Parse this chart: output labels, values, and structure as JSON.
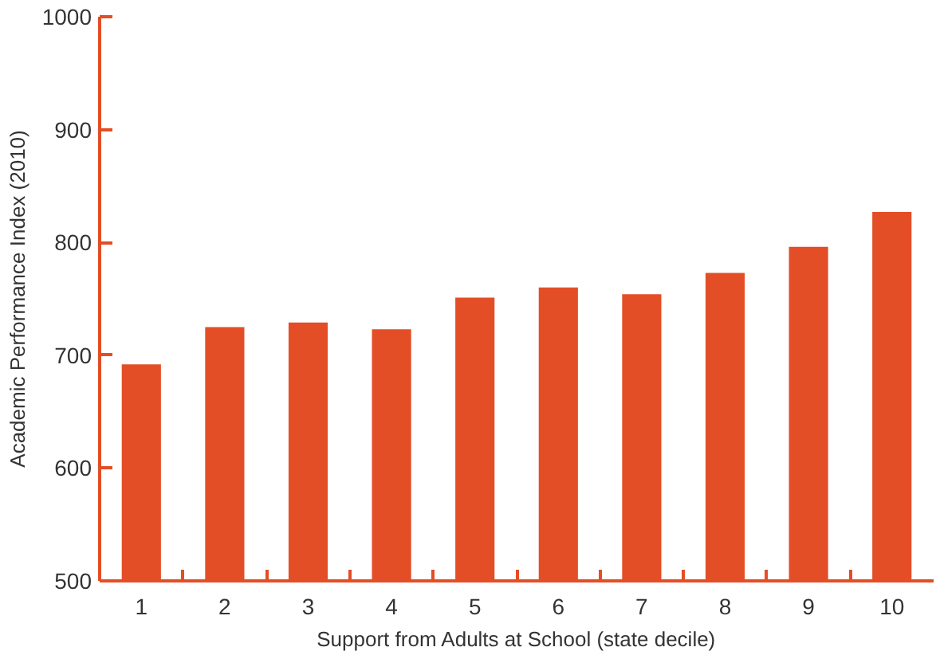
{
  "chart_data": {
    "type": "bar",
    "xlabel": "Support from Adults at School (state decile)",
    "ylabel": "Academic Performance Index (2010)",
    "categories": [
      "1",
      "2",
      "3",
      "4",
      "5",
      "6",
      "7",
      "8",
      "9",
      "10"
    ],
    "values": [
      692,
      725,
      729,
      723,
      751,
      760,
      754,
      773,
      796,
      827
    ],
    "color": "#e34e26",
    "ylim": [
      500,
      1000
    ],
    "yticks": [
      500,
      600,
      700,
      800,
      900,
      1000
    ],
    "grid": false
  }
}
